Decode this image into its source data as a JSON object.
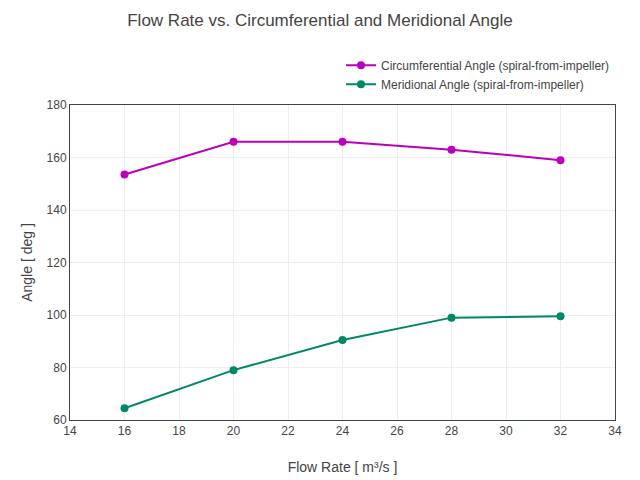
{
  "chart_data": {
    "type": "line",
    "title": "Flow Rate vs. Circumferential and Meridional Angle",
    "x_label": "Flow Rate [ m³/s ]",
    "y_label": "Angle [ deg ]",
    "x": [
      16,
      20,
      24,
      28,
      32
    ],
    "series": [
      {
        "name": "Circumferential Angle (spiral-from-impeller)",
        "color": "#bb00bb",
        "values": [
          153.5,
          166.0,
          166.0,
          163.0,
          159.0
        ]
      },
      {
        "name": "Meridional Angle (spiral-from-impeller)",
        "color": "#008866",
        "values": [
          64.5,
          79.0,
          90.5,
          99.0,
          99.5
        ]
      }
    ],
    "xlim": [
      14,
      34
    ],
    "ylim": [
      60,
      180
    ],
    "xticks": [
      14,
      16,
      18,
      20,
      22,
      24,
      26,
      28,
      30,
      32,
      34
    ],
    "yticks": [
      60,
      80,
      100,
      120,
      140,
      160,
      180
    ],
    "grid": true,
    "legend": "upper right",
    "marker": "circle",
    "line_style": "solid"
  }
}
